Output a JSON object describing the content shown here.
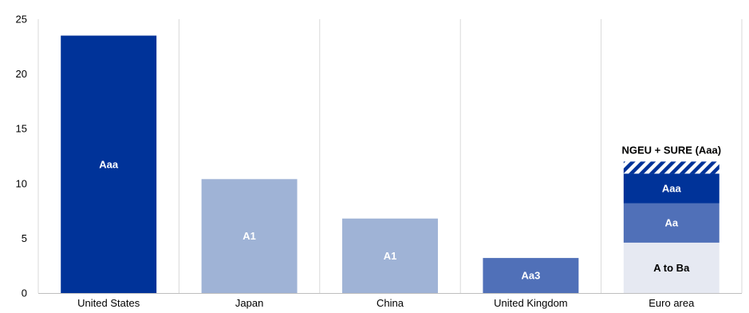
{
  "chart_data": {
    "type": "bar",
    "stacked": true,
    "title": "",
    "xlabel": "",
    "ylabel": "",
    "ylim": [
      0,
      25
    ],
    "yticks": [
      0,
      5,
      10,
      15,
      20,
      25
    ],
    "grid": {
      "vertical": true,
      "horizontal": false
    },
    "categories": [
      "United States",
      "Japan",
      "China",
      "United Kingdom",
      "Euro area"
    ],
    "bars": [
      {
        "category": "United States",
        "segments": [
          {
            "value": 23.5,
            "label": "Aaa",
            "color": "#003399",
            "text_color": "#ffffff"
          }
        ]
      },
      {
        "category": "Japan",
        "segments": [
          {
            "value": 10.4,
            "label": "A1",
            "color": "#9fb3d6",
            "text_color": "#ffffff"
          }
        ]
      },
      {
        "category": "China",
        "segments": [
          {
            "value": 6.8,
            "label": "A1",
            "color": "#9fb3d6",
            "text_color": "#ffffff"
          }
        ]
      },
      {
        "category": "United Kingdom",
        "segments": [
          {
            "value": 3.2,
            "label": "Aa3",
            "color": "#5070b8",
            "text_color": "#ffffff"
          }
        ]
      },
      {
        "category": "Euro area",
        "segments": [
          {
            "value": 4.6,
            "label": "A to Ba",
            "color": "#e6e9f2",
            "text_color": "#000000"
          },
          {
            "value": 3.6,
            "label": "Aa",
            "color": "#5070b8",
            "text_color": "#ffffff"
          },
          {
            "value": 2.7,
            "label": "Aaa",
            "color": "#003399",
            "text_color": "#ffffff"
          },
          {
            "value": 1.1,
            "label": "",
            "color": "#003399",
            "pattern": "hatch",
            "text_color": "#ffffff"
          }
        ]
      }
    ],
    "annotation": {
      "category": "Euro area",
      "text": "NGEU  + SURE (Aaa)"
    }
  }
}
